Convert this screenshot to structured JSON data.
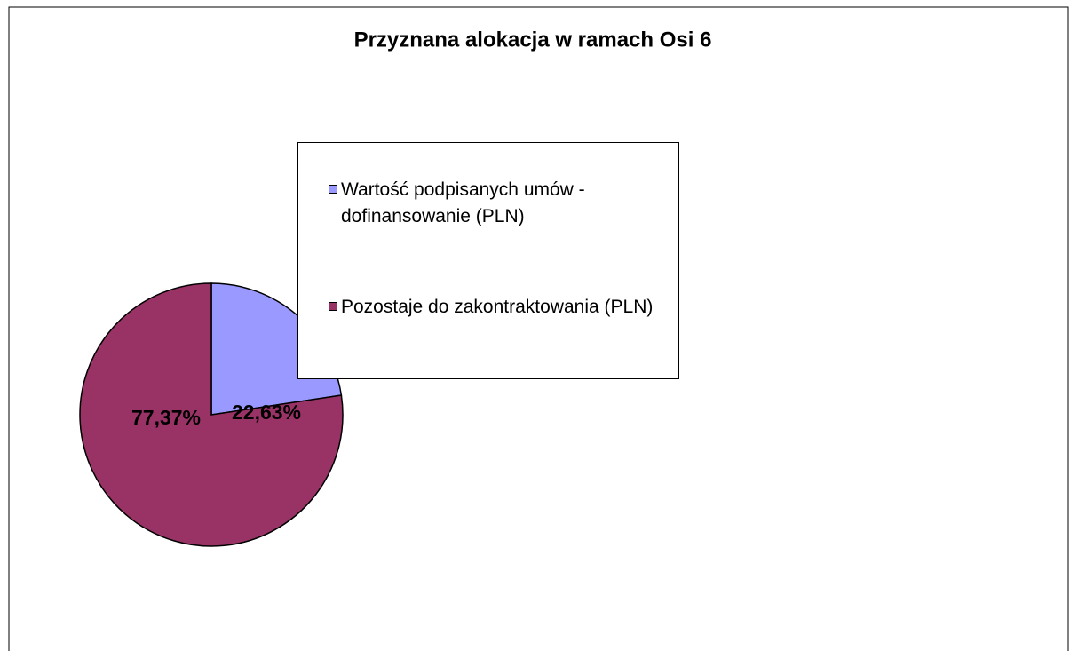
{
  "chart_data": {
    "type": "pie",
    "title": "Przyznana alokacja w ramach Osi 6",
    "categories": [
      "Wartość podpisanych umów - dofinansowanie (PLN)",
      "Pozostaje do zakontraktowania (PLN)"
    ],
    "values": [
      22.63,
      77.37
    ],
    "value_labels": [
      "22,63%",
      "77,37%"
    ],
    "colors": [
      "#9999ff",
      "#993366"
    ]
  }
}
